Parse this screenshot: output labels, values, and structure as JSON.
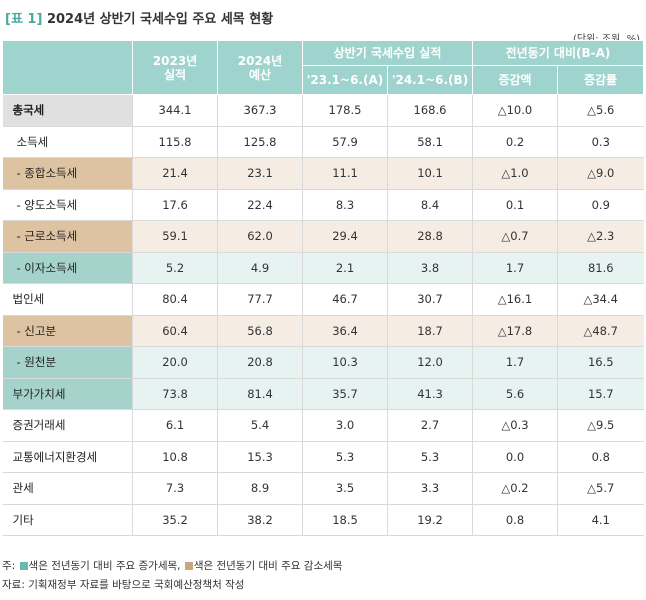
{
  "title": {
    "label": "[표 1]",
    "text": "2024년 상반기 국세수입 주요 세목 현황"
  },
  "unit": "(단위: 조원, %)",
  "header": {
    "col2023": [
      "2023년",
      "실적"
    ],
    "col2024": [
      "2024년",
      "예산"
    ],
    "group1": "상반기 국세수입 실적",
    "group1_a": "'23.1~6.(A)",
    "group1_b": "'24.1~6.(B)",
    "group2": "전년동기 대비(B-A)",
    "group2_a": "증감액",
    "group2_b": "증감률"
  },
  "rows": [
    {
      "name": "총국세",
      "c1": "344.1",
      "c2": "367.3",
      "c3": "178.5",
      "c4": "168.6",
      "c5": "△10.0",
      "c6": "△5.6"
    },
    {
      "name": "소득세",
      "c1": "115.8",
      "c2": "125.8",
      "c3": "57.9",
      "c4": "58.1",
      "c5": "0.2",
      "c6": "0.3"
    },
    {
      "name": "- 종합소득세",
      "c1": "21.4",
      "c2": "23.1",
      "c3": "11.1",
      "c4": "10.1",
      "c5": "△1.0",
      "c6": "△9.0"
    },
    {
      "name": "- 양도소득세",
      "c1": "17.6",
      "c2": "22.4",
      "c3": "8.3",
      "c4": "8.4",
      "c5": "0.1",
      "c6": "0.9"
    },
    {
      "name": "- 근로소득세",
      "c1": "59.1",
      "c2": "62.0",
      "c3": "29.4",
      "c4": "28.8",
      "c5": "△0.7",
      "c6": "△2.3"
    },
    {
      "name": "- 이자소득세",
      "c1": "5.2",
      "c2": "4.9",
      "c3": "2.1",
      "c4": "3.8",
      "c5": "1.7",
      "c6": "81.6"
    },
    {
      "name": "법인세",
      "c1": "80.4",
      "c2": "77.7",
      "c3": "46.7",
      "c4": "30.7",
      "c5": "△16.1",
      "c6": "△34.4"
    },
    {
      "name": "- 신고분",
      "c1": "60.4",
      "c2": "56.8",
      "c3": "36.4",
      "c4": "18.7",
      "c5": "△17.8",
      "c6": "△48.7"
    },
    {
      "name": "- 원천분",
      "c1": "20.0",
      "c2": "20.8",
      "c3": "10.3",
      "c4": "12.0",
      "c5": "1.7",
      "c6": "16.5"
    },
    {
      "name": "부가가치세",
      "c1": "73.8",
      "c2": "81.4",
      "c3": "35.7",
      "c4": "41.3",
      "c5": "5.6",
      "c6": "15.7"
    },
    {
      "name": "증권거래세",
      "c1": "6.1",
      "c2": "5.4",
      "c3": "3.0",
      "c4": "2.7",
      "c5": "△0.3",
      "c6": "△9.5"
    },
    {
      "name": "교통에너지환경세",
      "c1": "10.8",
      "c2": "15.3",
      "c3": "5.3",
      "c4": "5.3",
      "c5": "0.0",
      "c6": "0.8"
    },
    {
      "name": "관세",
      "c1": "7.3",
      "c2": "8.9",
      "c3": "3.5",
      "c4": "3.3",
      "c5": "△0.2",
      "c6": "△5.7"
    },
    {
      "name": "기타",
      "c1": "35.2",
      "c2": "38.2",
      "c3": "18.5",
      "c4": "19.2",
      "c5": "0.8",
      "c6": "4.1"
    }
  ],
  "footnote": {
    "prefix": "주:",
    "teal_text": "색은 전년동기 대비 주요 증가세목,",
    "tan_text": "색은 전년동기 대비 주요 감소세목"
  },
  "source": "자료: 기획재정부 자료를 바탕으로 국회예산정책처 작성",
  "colors": {
    "header": "#9fd3cd",
    "increase": "#a5d3cc",
    "decrease": "#ddc3a1",
    "total": "#e0e0e0"
  }
}
